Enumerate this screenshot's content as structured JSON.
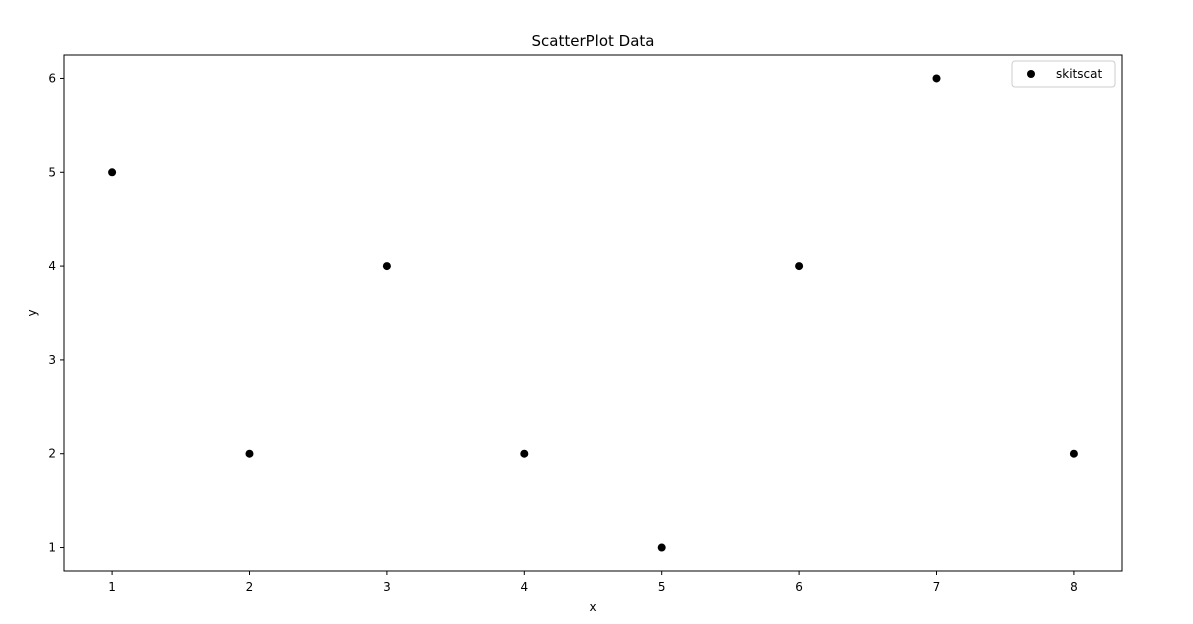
{
  "chart_data": {
    "type": "scatter",
    "title": "ScatterPlot Data",
    "xlabel": "x",
    "ylabel": "y",
    "xlim": [
      0.65,
      8.35
    ],
    "ylim": [
      0.75,
      6.25
    ],
    "xticks": [
      1,
      2,
      3,
      4,
      5,
      6,
      7,
      8
    ],
    "yticks": [
      1,
      2,
      3,
      4,
      5,
      6
    ],
    "grid": false,
    "legend_position": "top-right",
    "series": [
      {
        "name": "skitscat",
        "color": "#000000",
        "marker": "circle",
        "x": [
          1,
          2,
          3,
          4,
          5,
          6,
          7,
          8
        ],
        "y": [
          5,
          2,
          4,
          2,
          1,
          4,
          6,
          2
        ]
      }
    ]
  }
}
